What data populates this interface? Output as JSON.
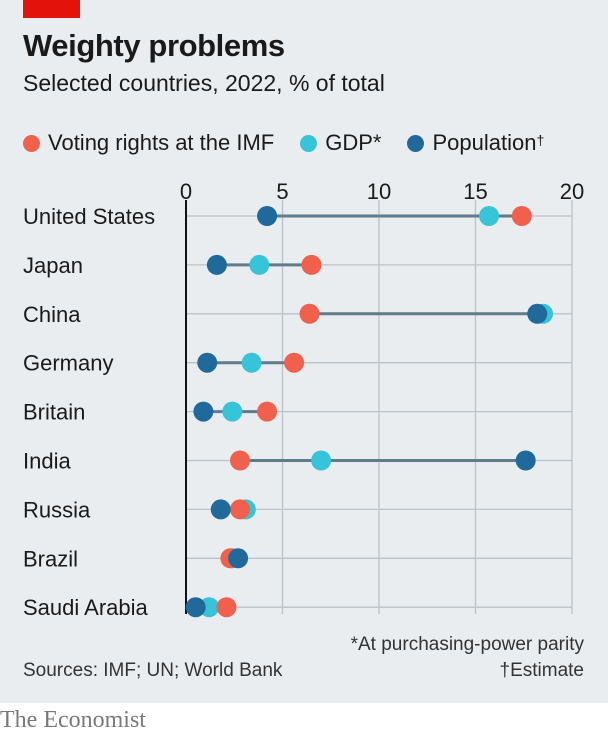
{
  "title": "Weighty problems",
  "subtitle": "Selected countries, 2022, % of total",
  "legend": [
    {
      "label": "Voting rights at the IMF",
      "mark": "",
      "color": "#f0604d"
    },
    {
      "label": "GDP",
      "mark": "*",
      "color": "#36c4d8"
    },
    {
      "label": "Population",
      "mark": "†",
      "color": "#1f6a9a"
    }
  ],
  "footnotes": {
    "gdp": "*At purchasing-power parity",
    "population": "†Estimate"
  },
  "sources": "Sources: IMF; UN; World Bank",
  "brand": "The Economist",
  "colors": {
    "voting": "#f0604d",
    "gdp": "#36c4d8",
    "population": "#1f6a9a",
    "connector": "#5f7b8c",
    "grid": "#b9c3ca",
    "accent": "#e3120b"
  },
  "chart_data": {
    "type": "dot-range",
    "xlim": [
      0,
      20
    ],
    "xticks": [
      0,
      5,
      10,
      15,
      20
    ],
    "grid": true,
    "categories": [
      "United States",
      "Japan",
      "China",
      "Germany",
      "Britain",
      "India",
      "Russia",
      "Brazil",
      "Saudi Arabia"
    ],
    "series": [
      {
        "name": "Voting rights at the IMF",
        "key": "voting",
        "values": [
          17.4,
          6.5,
          6.4,
          5.6,
          4.2,
          2.8,
          2.8,
          2.3,
          2.1
        ]
      },
      {
        "name": "GDP*",
        "key": "gdp",
        "values": [
          15.7,
          3.8,
          18.5,
          3.4,
          2.4,
          7.0,
          3.1,
          2.4,
          1.2
        ]
      },
      {
        "name": "Population†",
        "key": "population",
        "values": [
          4.2,
          1.6,
          18.2,
          1.1,
          0.9,
          17.6,
          1.8,
          2.7,
          0.5
        ]
      }
    ]
  }
}
